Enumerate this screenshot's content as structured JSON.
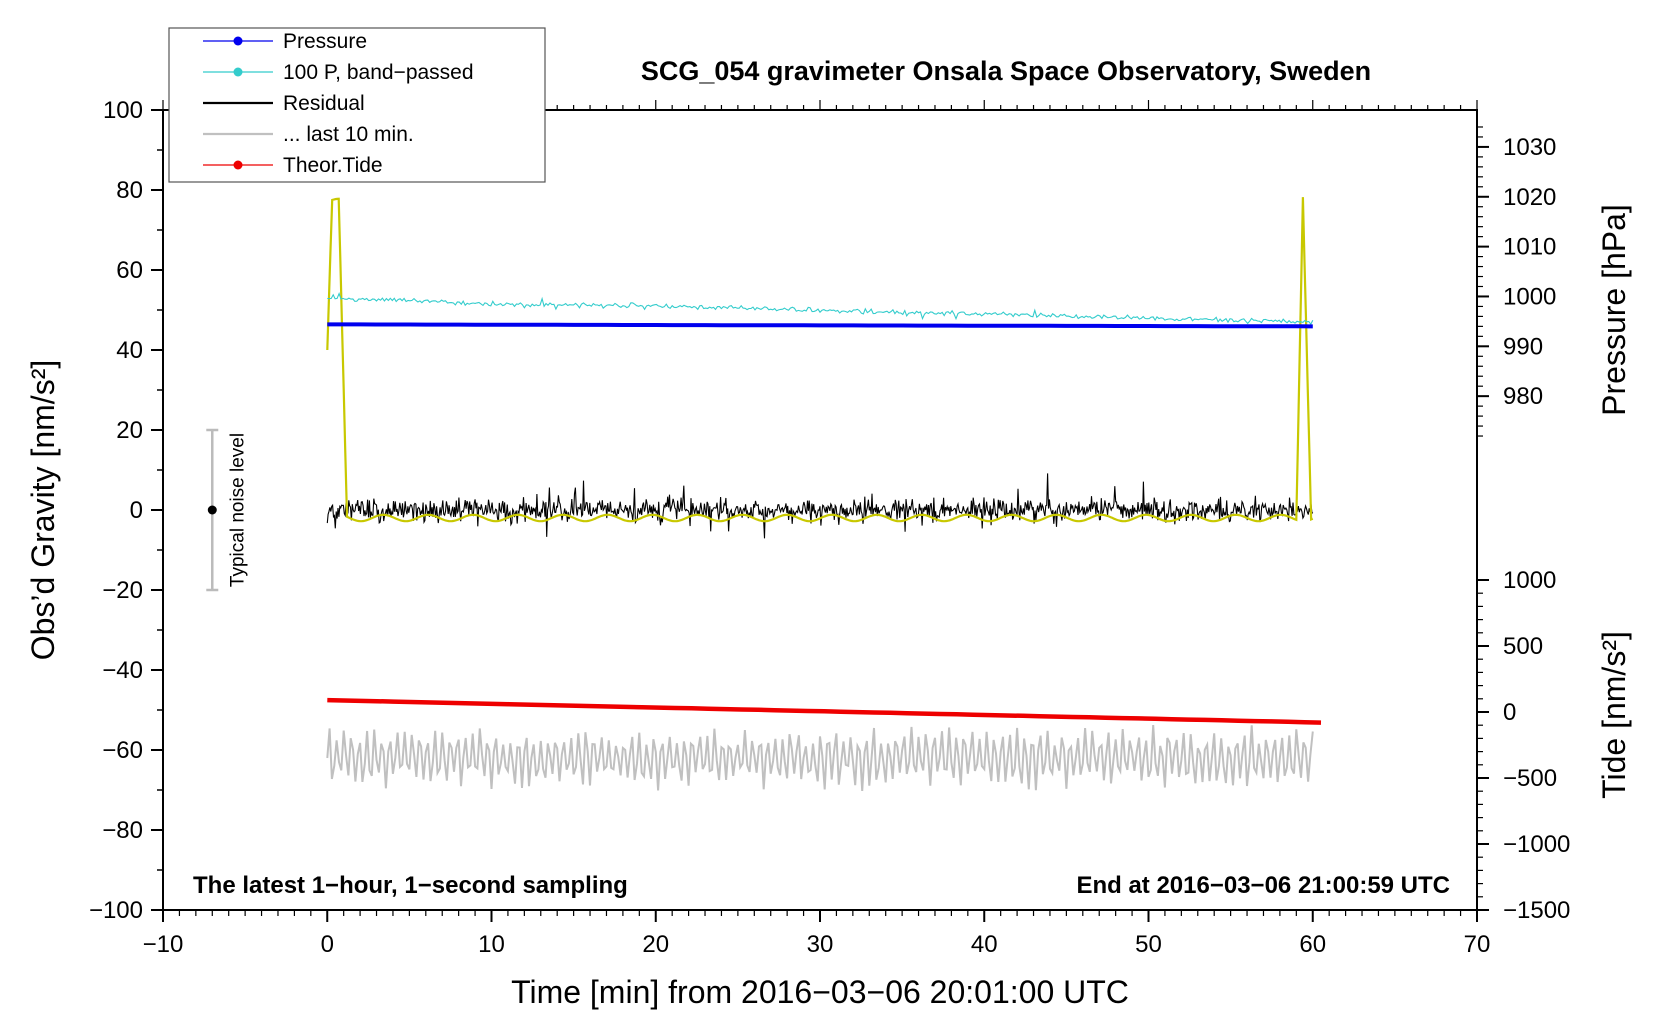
{
  "chart_data": {
    "type": "line",
    "title": "SCG_054 gravimeter Onsala Space Observatory, Sweden",
    "xlabel": "Time [min] from 2016−03−06 20:01:00 UTC",
    "ylabel_left": "Obs’d Gravity [nm/s²]",
    "ylabel_pressure": "Pressure [hPa]",
    "ylabel_tide": "Tide [nm/s²]",
    "xlim": [
      -10,
      70
    ],
    "ylim": [
      -100,
      100
    ],
    "pressure_lim": [
      970,
      1035
    ],
    "tide_lim": [
      -1500,
      1000
    ],
    "x_ticks": [
      "−10",
      "0",
      "10",
      "20",
      "30",
      "40",
      "50",
      "60",
      "70"
    ],
    "y_ticks": [
      "−100",
      "−80",
      "−60",
      "−40",
      "−20",
      "0",
      "20",
      "40",
      "60",
      "80",
      "100"
    ],
    "pressure_ticks": [
      "980",
      "990",
      "1000",
      "1010",
      "1020",
      "1030"
    ],
    "tide_ticks": [
      "−1500",
      "−1000",
      "−500",
      "0",
      "500",
      "1000"
    ],
    "annotation_left": "The latest 1−hour, 1−second sampling",
    "annotation_right": "End at 2016−03−06 21:00:59 UTC",
    "noise_label": "Typical noise level",
    "noise_bar": {
      "x": -7,
      "center": 0,
      "half_range": 20
    },
    "legend": [
      {
        "label": "Pressure",
        "color": "#0000ee",
        "marker": true
      },
      {
        "label": "100 P, band−passed",
        "color": "#33cccc",
        "marker": true
      },
      {
        "label": "Residual",
        "color": "#000000",
        "marker": false
      },
      {
        "label": "... last 10 min.",
        "color": "#c0c0c0",
        "marker": false
      },
      {
        "label": "Theor.Tide",
        "color": "#ee0000",
        "marker": true
      }
    ],
    "series": [
      {
        "name": "Pressure",
        "axis": "pressure",
        "color": "#0000ee",
        "x": [
          0,
          60
        ],
        "values": [
          994.4,
          994.0
        ]
      },
      {
        "name": "100 P, band−passed",
        "axis": "gravity",
        "color": "#33cccc",
        "x": [
          0,
          10,
          20,
          30,
          40,
          50,
          60
        ],
        "values": [
          53,
          51.5,
          51,
          50,
          49,
          48,
          47
        ]
      },
      {
        "name": "Residual",
        "axis": "gravity",
        "color": "#000000",
        "x": [
          0,
          60
        ],
        "values": [
          0,
          0
        ],
        "noise_amplitude": 5
      },
      {
        "name": "... last 10 min.",
        "axis": "gravity",
        "color": "#c0c0c0",
        "x": [
          0,
          60
        ],
        "values": [
          -62,
          -62
        ],
        "oscillation_amplitude": 7
      },
      {
        "name": "Theor.Tide",
        "axis": "tide",
        "color": "#ee0000",
        "x": [
          0,
          60.5
        ],
        "values": [
          90,
          -80
        ]
      },
      {
        "name": "Filtered residual",
        "axis": "gravity",
        "color": "#c8c800",
        "x": [
          0,
          0.3,
          0.7,
          1.2,
          59,
          59.4,
          59.9,
          60
        ],
        "values": [
          40,
          77,
          77,
          -2,
          -2,
          79,
          -2,
          -2
        ]
      }
    ]
  }
}
